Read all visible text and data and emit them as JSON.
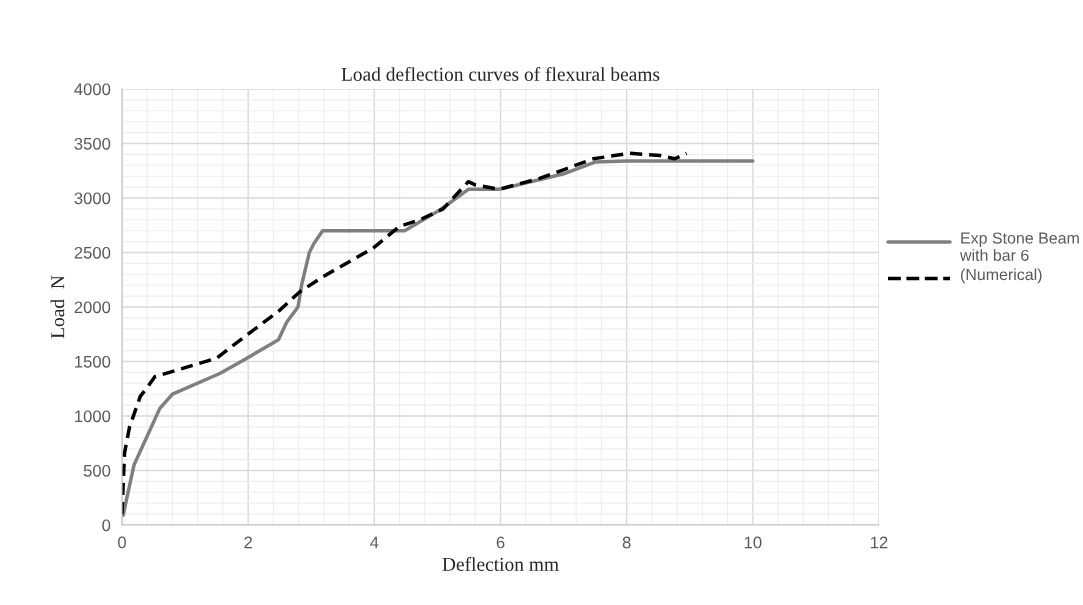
{
  "chart_data": {
    "type": "line",
    "title": "Load deflection curves of flexural beams",
    "xlabel": "Deflection mm",
    "ylabel": "Load  N",
    "series": [
      {
        "name": "Exp Stone Beam with bar 6",
        "color": "#7f7f7f",
        "line_style": "solid",
        "x": [
          0.02,
          0.07,
          0.19,
          0.6,
          0.8,
          1.55,
          1.98,
          2.48,
          2.61,
          2.79,
          2.85,
          2.97,
          3.04,
          3.18,
          4.48,
          5.04,
          5.49,
          5.98,
          6.99,
          7.5,
          8.0,
          10.0
        ],
        "values": [
          90,
          230,
          550,
          1070,
          1200,
          1390,
          1530,
          1700,
          1860,
          2000,
          2210,
          2500,
          2580,
          2700,
          2700,
          2890,
          3080,
          3080,
          3220,
          3330,
          3340,
          3340
        ]
      },
      {
        "name": "(Numerical)",
        "color": "#000000",
        "line_style": "dashed",
        "x": [
          0.0,
          0.04,
          0.12,
          0.29,
          0.41,
          0.52,
          1.5,
          1.72,
          2.5,
          2.82,
          3.19,
          3.98,
          4.4,
          4.72,
          5.09,
          5.49,
          5.6,
          5.98,
          6.62,
          7.05,
          7.47,
          8.05,
          8.53,
          8.76,
          8.95
        ],
        "values": [
          100,
          660,
          900,
          1180,
          1270,
          1360,
          1530,
          1630,
          1970,
          2140,
          2280,
          2540,
          2740,
          2800,
          2900,
          3150,
          3120,
          3080,
          3180,
          3270,
          3360,
          3410,
          3390,
          3360,
          3410
        ]
      }
    ],
    "xlim": [
      0,
      12
    ],
    "xticks": [
      0,
      2,
      4,
      6,
      8,
      10,
      12
    ],
    "ylim": [
      0,
      4000
    ],
    "yticks": [
      0,
      500,
      1000,
      1500,
      2000,
      2500,
      3000,
      3500,
      4000
    ],
    "grid": true,
    "legend": "right",
    "marker": "none"
  }
}
